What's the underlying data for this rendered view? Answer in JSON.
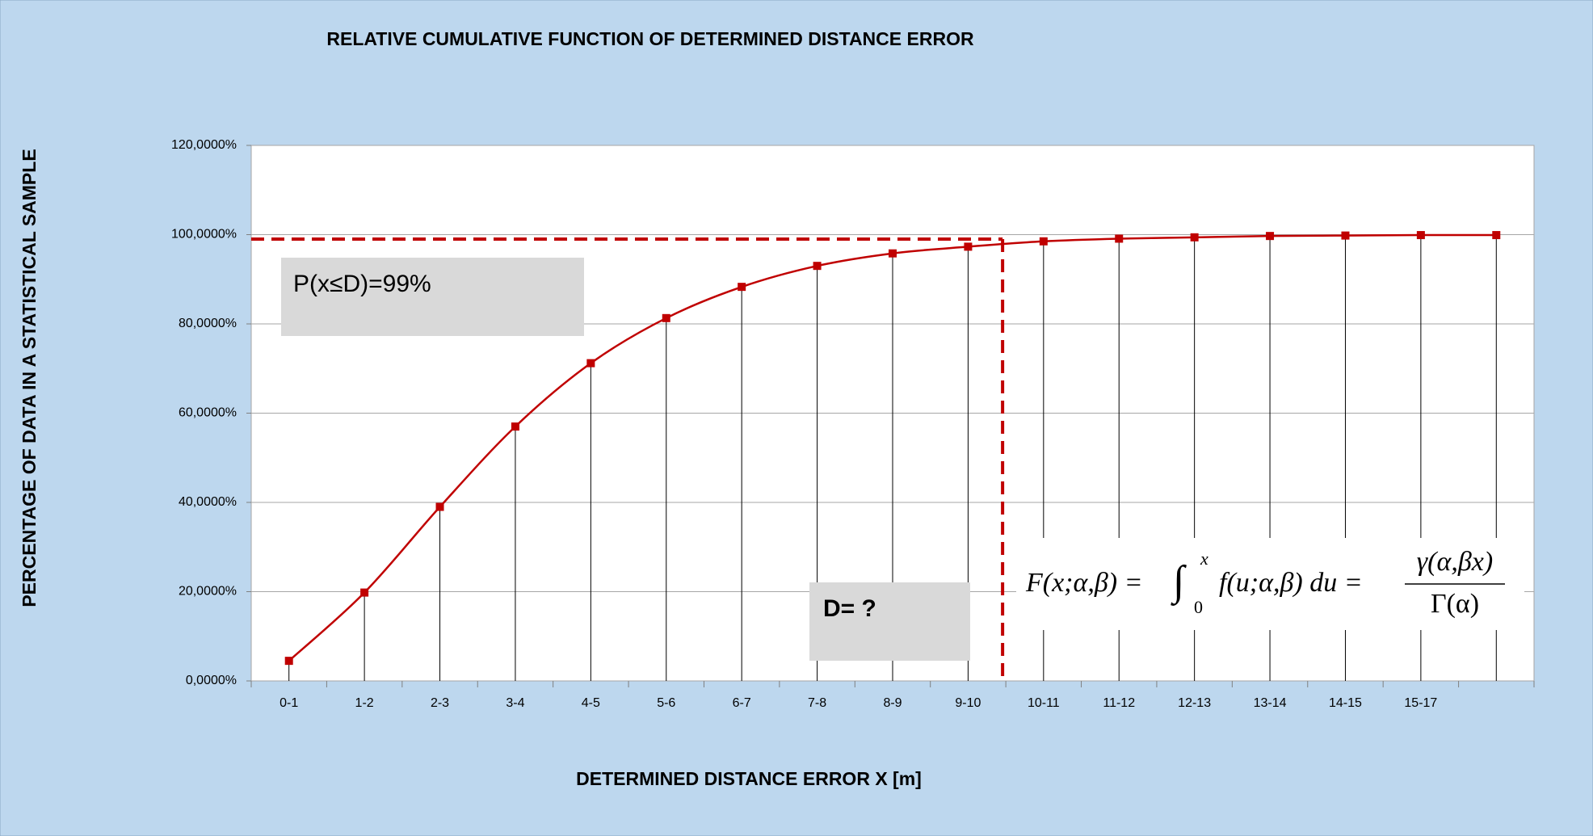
{
  "chart_data": {
    "type": "line",
    "title": "RELATIVE CUMULATIVE FUNCTION OF DETERMINED DISTANCE ERROR",
    "x_label": "DETERMINED DISTANCE ERROR X [m]",
    "y_label": "PERCENTAGE OF DATA IN A STATISTICAL SAMPLE",
    "categories": [
      "0-1",
      "1-2",
      "2-3",
      "3-4",
      "4-5",
      "5-6",
      "6-7",
      "7-8",
      "8-9",
      "9-10",
      "10-11",
      "11-12",
      "12-13",
      "13-14",
      "14-15",
      "15-17",
      null
    ],
    "series": [
      {
        "color": "#c00000",
        "values": [
          4.5,
          19.8,
          39,
          57,
          71.2,
          81.3,
          88.3,
          93,
          95.8,
          97.3,
          98.5,
          99.1,
          99.4,
          99.7,
          99.8,
          99.9,
          99.9
        ]
      }
    ],
    "ylim": [
      0,
      120
    ],
    "yticks": [
      {
        "value": 0,
        "label": "0,0000%"
      },
      {
        "value": 20,
        "label": "20,0000%"
      },
      {
        "value": 40,
        "label": "40,0000%"
      },
      {
        "value": 60,
        "label": "60,0000%"
      },
      {
        "value": 80,
        "label": "80,0000%"
      },
      {
        "value": 100,
        "label": "100,0000%"
      },
      {
        "value": 120,
        "label": "120,0000%"
      }
    ],
    "grid": true,
    "reference_value": 99,
    "annotations": [
      "P(x≤D)=99%",
      "D= ?"
    ],
    "formula": {
      "lhs": "F(x;α,β) =",
      "integral": "∫",
      "lower": "0",
      "upper": "x",
      "integrand": "f(u;α,β) du =",
      "numerator": "γ(α,βx)",
      "denominator": "Γ(α)"
    }
  }
}
